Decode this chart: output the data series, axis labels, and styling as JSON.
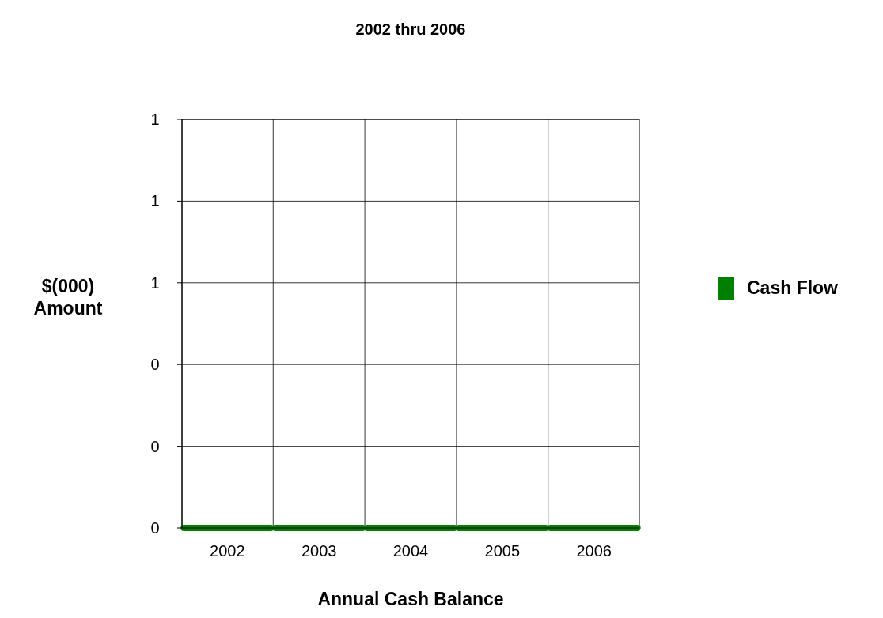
{
  "chart_data": {
    "type": "bar",
    "title": "2002  thru 2006",
    "xlabel": "Annual Cash Balance",
    "ylabel": "$(000)\nAmount",
    "categories": [
      "2002",
      "2003",
      "2004",
      "2005",
      "2006"
    ],
    "series": [
      {
        "name": "Cash Flow",
        "color": "#008000",
        "values": [
          0,
          0,
          0,
          0,
          0
        ]
      }
    ],
    "ylim": [
      0,
      1
    ],
    "yticks": [
      {
        "value": 0,
        "label": "0"
      },
      {
        "value": 0.2,
        "label": "0"
      },
      {
        "value": 0.4,
        "label": "0"
      },
      {
        "value": 0.6,
        "label": "1"
      },
      {
        "value": 0.8,
        "label": "1"
      },
      1
    ],
    "grid": true,
    "legend": "right"
  }
}
